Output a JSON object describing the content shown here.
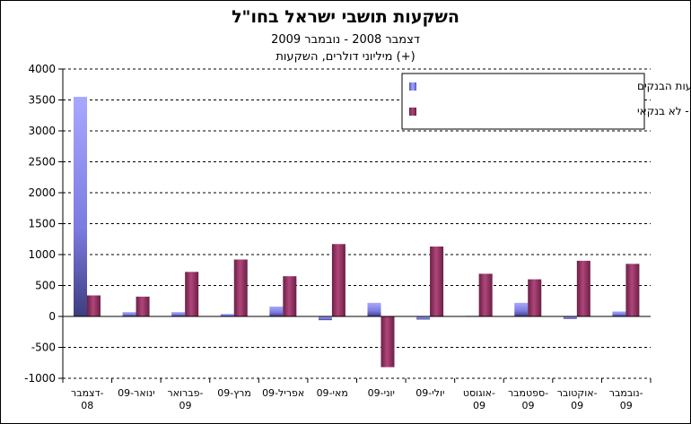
{
  "chart_data": {
    "type": "bar",
    "title": "השקעות תושבי ישראל בחו\"ל",
    "subtitle": "דצמבר 2008 - נובמבר 2009",
    "subtitle2": "מיליוני דולרים, השקעות (+)",
    "categories": [
      [
        "דצמבר-",
        "08"
      ],
      [
        "ינואר-09"
      ],
      [
        "פברואר-",
        "09"
      ],
      [
        "מרץ-09"
      ],
      [
        "אפריל-09"
      ],
      [
        "מאי-09"
      ],
      [
        "יוני-09"
      ],
      [
        "יולי-09"
      ],
      [
        "אוגוסט-",
        "09"
      ],
      [
        "ספטמבר-",
        "09"
      ],
      [
        "אוקטובר-",
        "09"
      ],
      [
        "נובמבר-",
        "09"
      ]
    ],
    "series": [
      {
        "name": "השקעות ישירות בחו\"ל באמצעות הבנקים",
        "color": "#9999ff",
        "values": [
          3550,
          70,
          70,
          40,
          160,
          -60,
          220,
          -50,
          10,
          220,
          -40,
          80
        ]
      },
      {
        "name": "השקעות פיננסיות בני\"ע סחירים - לא בנקאי",
        "color": "#993366",
        "values": [
          340,
          320,
          720,
          920,
          650,
          1170,
          -820,
          1130,
          690,
          600,
          900,
          850
        ]
      }
    ],
    "ylim": [
      -1000,
      4000
    ],
    "yticks": [
      -1000,
      -500,
      0,
      500,
      1000,
      1500,
      2000,
      2500,
      3000,
      3500,
      4000
    ],
    "grid": true,
    "legend_position": "top-right"
  }
}
